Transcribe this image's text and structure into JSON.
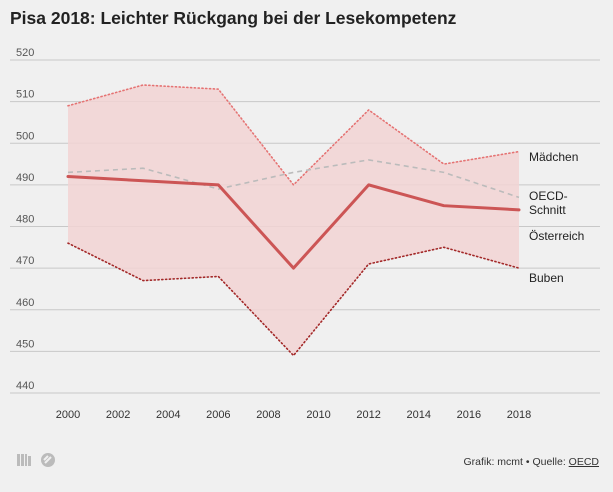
{
  "title": "Pisa 2018: Leichter Rückgang bei der Lesekompetenz",
  "footer": {
    "credit_prefix": "Grafik: mcmt • Quelle: ",
    "source_link": "OECD"
  },
  "colors": {
    "background": "#f0f0f0",
    "band_fill": "#f2d3d3",
    "austria": "#cc5555",
    "girls": "#e57373",
    "boys": "#a32828",
    "oecd": "#bbbbbb",
    "grid": "#c8c8c8",
    "text": "#222222"
  },
  "chart_data": {
    "type": "line",
    "title": "Pisa 2018: Leichter Rückgang bei der Lesekompetenz",
    "xlabel": "",
    "ylabel": "",
    "xlim": [
      2000,
      2018
    ],
    "ylim": [
      440,
      520
    ],
    "x_ticks": [
      2000,
      2002,
      2004,
      2006,
      2008,
      2010,
      2012,
      2014,
      2016,
      2018
    ],
    "y_ticks": [
      440,
      450,
      460,
      470,
      480,
      490,
      500,
      510,
      520
    ],
    "band_between": [
      "Buben",
      "Mädchen"
    ],
    "series": [
      {
        "name": "Mädchen",
        "label": "Mädchen",
        "style": "dotted",
        "x": [
          2000,
          2003,
          2006,
          2009,
          2012,
          2015,
          2018
        ],
        "values": [
          509,
          514,
          513,
          490,
          508,
          495,
          498
        ]
      },
      {
        "name": "OECD-Schnitt",
        "label_lines": [
          "OECD-",
          "Schnitt"
        ],
        "style": "dashed",
        "x": [
          2000,
          2003,
          2006,
          2009,
          2012,
          2015,
          2018
        ],
        "values": [
          493,
          494,
          489,
          493,
          496,
          493,
          487
        ]
      },
      {
        "name": "Österreich",
        "label": "Österreich",
        "style": "solid",
        "x": [
          2000,
          2003,
          2006,
          2009,
          2012,
          2015,
          2018
        ],
        "values": [
          492,
          491,
          490,
          470,
          490,
          485,
          484
        ]
      },
      {
        "name": "Buben",
        "label": "Buben",
        "style": "dotted",
        "x": [
          2000,
          2003,
          2006,
          2009,
          2012,
          2015,
          2018
        ],
        "values": [
          476,
          467,
          468,
          449,
          471,
          475,
          470
        ]
      }
    ]
  }
}
